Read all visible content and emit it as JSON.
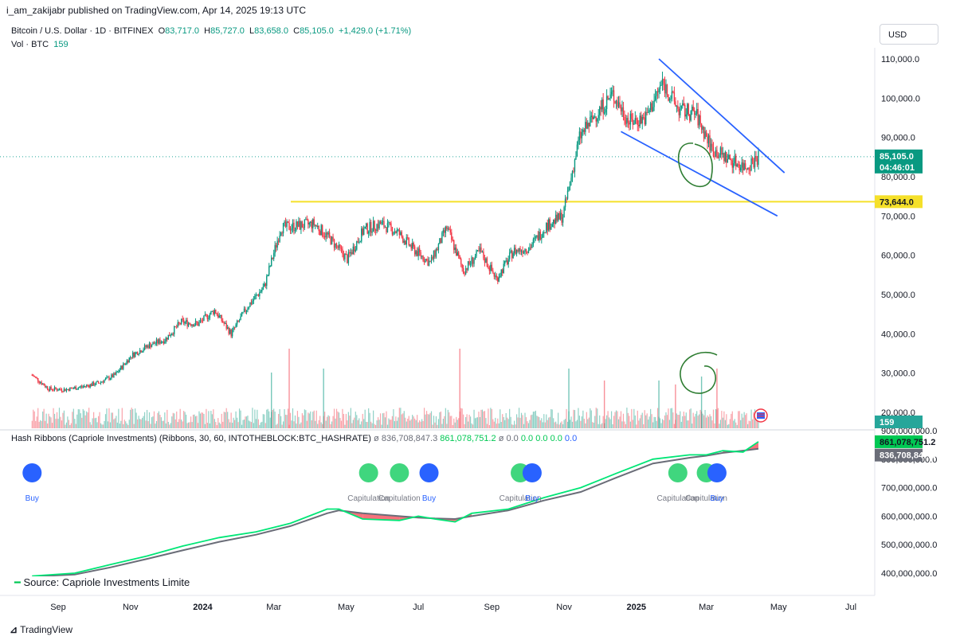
{
  "header": {
    "published": "i_am_zakijabr published on TradingView.com, Apr 14, 2025 19:13 UTC"
  },
  "legend": {
    "symbol": "Bitcoin / U.S. Dollar · 1D · BITFINEX",
    "o_label": "O",
    "o": "83,717.0",
    "h_label": "H",
    "h": "85,727.0",
    "l_label": "L",
    "l": "83,658.0",
    "c_label": "C",
    "c": "85,105.0",
    "change": "+1,429.0 (+1.71%)",
    "vol_label": "Vol · BTC",
    "vol": "159"
  },
  "currency": "USD",
  "price_badges": {
    "last": "85,105.0",
    "countdown": "04:46:01",
    "level": "73,644.0",
    "volume": "159",
    "hash_fast": "861,078,751.2",
    "hash_slow": "836,708,847.3"
  },
  "hash_legend": {
    "title": "Hash Ribbons (Capriole Investments) (Ribbons, 30, 60, INTOTHEBLOCK:BTC_HASHRATE)",
    "v1": "836,708,847.3",
    "v2": "861,078,751.2",
    "v3": "0.0",
    "v4": "0.0",
    "v5": "0.0",
    "v6": "0.0",
    "v7": "0.0"
  },
  "source_label": "Source: Capriole Investments Limite",
  "footer": "TradingView",
  "signal_labels": {
    "buy": "Buy",
    "capitulation": "Capitulation"
  },
  "chart_data": [
    {
      "type": "candlestick",
      "title": "Bitcoin / U.S. Dollar · 1D · BITFINEX",
      "x_ticks": [
        "Sep",
        "Nov",
        "2024",
        "Mar",
        "May",
        "Jul",
        "Sep",
        "Nov",
        "2025",
        "Mar",
        "May",
        "Jul"
      ],
      "y_ticks": [
        20000,
        30000,
        40000,
        50000,
        60000,
        70000,
        80000,
        90000,
        100000,
        110000
      ],
      "ylim": [
        14000,
        116000
      ],
      "last_close": 85105,
      "horizontal_level": 73644,
      "series": [
        {
          "name": "price (approx. weekly closes)",
          "x": [
            "2023-08-10",
            "2023-08-24",
            "2023-09-07",
            "2023-09-21",
            "2023-10-05",
            "2023-10-19",
            "2023-11-02",
            "2023-11-16",
            "2023-11-30",
            "2023-12-14",
            "2023-12-28",
            "2024-01-11",
            "2024-01-25",
            "2024-02-08",
            "2024-02-22",
            "2024-03-07",
            "2024-03-21",
            "2024-04-04",
            "2024-04-18",
            "2024-05-02",
            "2024-05-16",
            "2024-05-30",
            "2024-06-13",
            "2024-06-27",
            "2024-07-11",
            "2024-07-25",
            "2024-08-08",
            "2024-08-22",
            "2024-09-05",
            "2024-09-19",
            "2024-10-03",
            "2024-10-17",
            "2024-10-31",
            "2024-11-14",
            "2024-11-28",
            "2024-12-12",
            "2024-12-26",
            "2025-01-09",
            "2025-01-23",
            "2025-02-06",
            "2025-02-20",
            "2025-03-06",
            "2025-03-20",
            "2025-04-03",
            "2025-04-14"
          ],
          "values": [
            29500,
            26000,
            25800,
            26500,
            27500,
            29500,
            34500,
            37000,
            38500,
            43000,
            42500,
            46000,
            40000,
            47000,
            52000,
            67000,
            67500,
            68000,
            64000,
            59000,
            66500,
            68000,
            66000,
            61500,
            58000,
            67000,
            56000,
            61000,
            54000,
            61000,
            62000,
            67500,
            70000,
            90000,
            96000,
            101000,
            94000,
            95000,
            104000,
            97000,
            96000,
            87000,
            84500,
            82500,
            85105
          ]
        }
      ],
      "annotations": {
        "upper_trendline": {
          "from": [
            "2025-01-20",
            110000
          ],
          "to": [
            "2025-05-06",
            81000
          ]
        },
        "lower_trendline": {
          "from": [
            "2024-12-19",
            91500
          ],
          "to": [
            "2025-04-30",
            70000
          ]
        }
      }
    },
    {
      "type": "bar",
      "title": "Vol · BTC",
      "last_value": 159,
      "volume_spike_dates": [
        "2024-02-28",
        "2024-03-14",
        "2024-04-12",
        "2024-08-05",
        "2024-11-05",
        "2024-12-05",
        "2025-01-20",
        "2025-02-03",
        "2025-02-25",
        "2025-03-10"
      ]
    },
    {
      "type": "line",
      "title": "Hash Ribbons (Capriole Investments) (Ribbons, 30, 60, INTOTHEBLOCK:BTC_HASHRATE)",
      "y_ticks": [
        400000000,
        500000000,
        600000000,
        700000000,
        800000000,
        900000000
      ],
      "ylim": [
        380000000,
        910000000
      ],
      "x": [
        "2023-08-10",
        "2023-09-15",
        "2023-10-15",
        "2023-11-15",
        "2023-12-15",
        "2024-01-15",
        "2024-02-15",
        "2024-03-15",
        "2024-04-15",
        "2024-04-25",
        "2024-05-15",
        "2024-06-15",
        "2024-07-01",
        "2024-07-15",
        "2024-08-01",
        "2024-08-15",
        "2024-09-15",
        "2024-10-15",
        "2024-11-15",
        "2024-12-15",
        "2025-01-15",
        "2025-02-15",
        "2025-03-01",
        "2025-03-15",
        "2025-04-01",
        "2025-04-14"
      ],
      "series": [
        {
          "name": "30",
          "values": [
            390000000,
            400000000,
            430000000,
            460000000,
            495000000,
            525000000,
            545000000,
            575000000,
            625000000,
            625000000,
            590000000,
            585000000,
            600000000,
            590000000,
            580000000,
            610000000,
            625000000,
            665000000,
            700000000,
            750000000,
            800000000,
            815000000,
            815000000,
            830000000,
            825000000,
            861078751.2
          ]
        },
        {
          "name": "60",
          "values": [
            388000000,
            395000000,
            420000000,
            450000000,
            480000000,
            510000000,
            535000000,
            565000000,
            610000000,
            620000000,
            610000000,
            600000000,
            595000000,
            592000000,
            590000000,
            600000000,
            620000000,
            655000000,
            685000000,
            735000000,
            785000000,
            805000000,
            812000000,
            822000000,
            830000000,
            836708847.3
          ]
        }
      ],
      "signals": [
        {
          "date": "2023-08-10",
          "kind": "Buy"
        },
        {
          "date": "2024-05-20",
          "kind": "Capitulation"
        },
        {
          "date": "2024-06-15",
          "kind": "Capitulation"
        },
        {
          "date": "2024-07-10",
          "kind": "Buy"
        },
        {
          "date": "2024-09-25",
          "kind": "Capitulation"
        },
        {
          "date": "2024-10-05",
          "kind": "Buy"
        },
        {
          "date": "2025-02-05",
          "kind": "Capitulation"
        },
        {
          "date": "2025-03-01",
          "kind": "Capitulation"
        },
        {
          "date": "2025-03-10",
          "kind": "Buy"
        }
      ]
    }
  ]
}
